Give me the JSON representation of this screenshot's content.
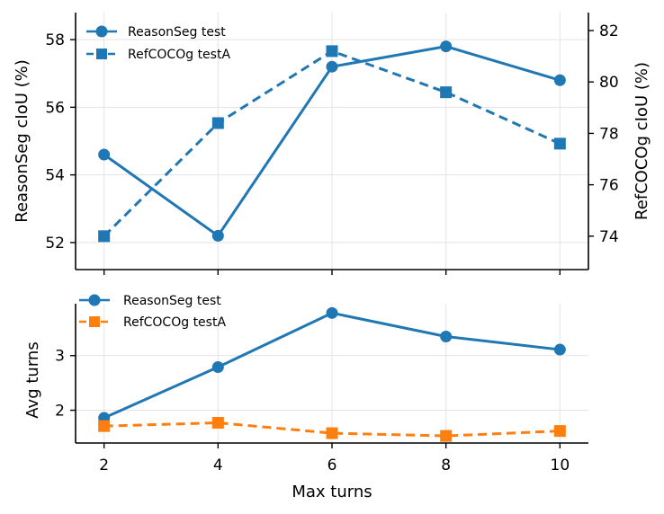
{
  "colors": {
    "blue": "#1f77b4",
    "orange": "#ff7f0e"
  },
  "chart_data": [
    {
      "type": "line",
      "xlabel": "",
      "ylabel": "ReasonSeg cIoU (%)",
      "y2label": "RefCOCOg cIoU (%)",
      "x": [
        2,
        4,
        6,
        8,
        10
      ],
      "xlim": [
        1.5,
        10.5
      ],
      "ylim": [
        51.2,
        58.8
      ],
      "y2lim": [
        72.7,
        82.7
      ],
      "yticks": [
        52,
        54,
        56,
        58
      ],
      "y2ticks": [
        74,
        76,
        78,
        80,
        82
      ],
      "grid": true,
      "legend": "top-left",
      "series": [
        {
          "name": "ReasonSeg test",
          "axis": "left",
          "marker": "circle",
          "style": "solid",
          "color": "#1f77b4",
          "values": [
            54.6,
            52.2,
            57.2,
            57.8,
            56.8
          ]
        },
        {
          "name": "RefCOCOg testA",
          "axis": "right",
          "marker": "square",
          "style": "dashed",
          "color": "#1f77b4",
          "values": [
            74.0,
            78.4,
            81.2,
            79.6,
            77.6
          ]
        }
      ]
    },
    {
      "type": "line",
      "xlabel": "Max turns",
      "ylabel": "Avg turns",
      "x": [
        2,
        4,
        6,
        8,
        10
      ],
      "xlim": [
        1.5,
        10.5
      ],
      "ylim": [
        1.4,
        3.95
      ],
      "yticks": [
        2,
        3
      ],
      "xticks": [
        2,
        4,
        6,
        8,
        10
      ],
      "grid": true,
      "legend": "top-left",
      "series": [
        {
          "name": "ReasonSeg test",
          "marker": "circle",
          "style": "solid",
          "color": "#1f77b4",
          "values": [
            1.86,
            2.79,
            3.78,
            3.35,
            3.11
          ]
        },
        {
          "name": "RefCOCOg testA",
          "marker": "square",
          "style": "dashed",
          "color": "#ff7f0e",
          "values": [
            1.71,
            1.77,
            1.58,
            1.53,
            1.62
          ]
        }
      ]
    }
  ]
}
